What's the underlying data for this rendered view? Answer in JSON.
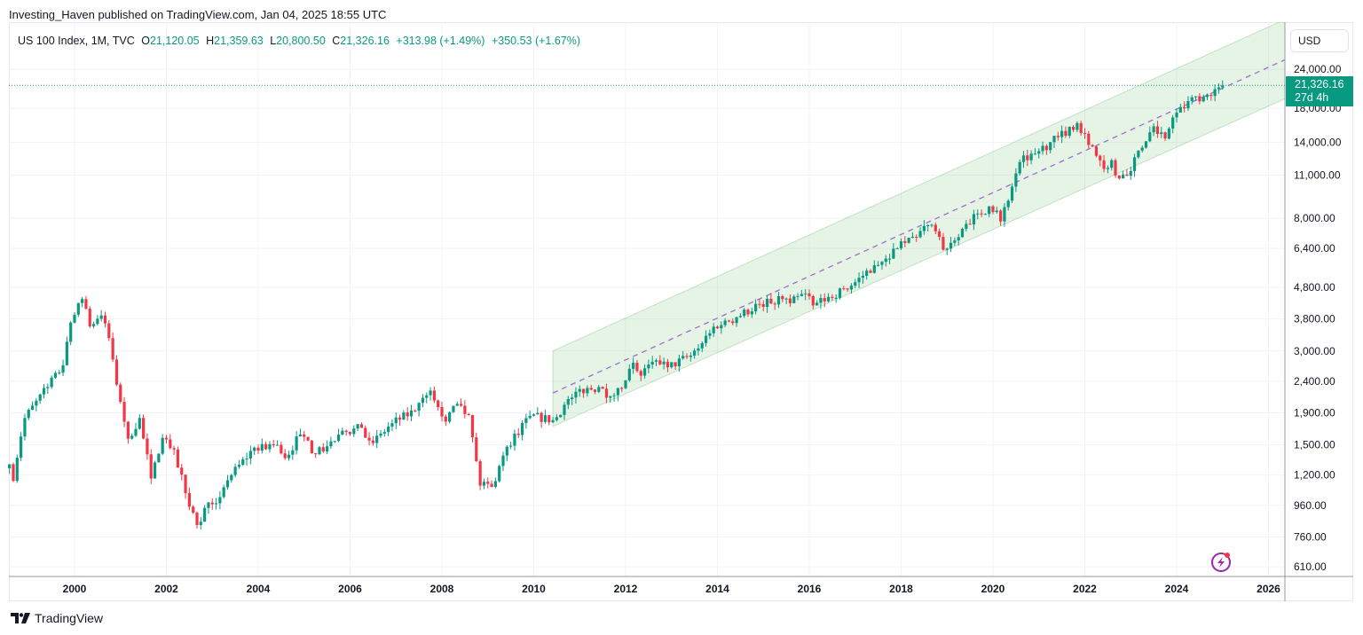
{
  "published": "Investing_Haven published on TradingView.com, Jan 04, 2025 18:55 UTC",
  "legend": {
    "symbol": "US 100 Index, 1M, TVC",
    "open_label": "O",
    "open": "21,120.05",
    "high_label": "H",
    "high": "21,359.63",
    "low_label": "L",
    "low": "20,800.50",
    "close_label": "C",
    "close": "21,326.16",
    "change": "+313.98 (+1.49%)",
    "change2": "+350.53 (+1.67%)"
  },
  "currency": "USD",
  "last_price": {
    "value": "21,326.16",
    "countdown": "27d 4h"
  },
  "footer": {
    "brand": "TradingView"
  },
  "icons": {
    "logo": "tradingview-logo-icon",
    "flash": "lightning-icon"
  },
  "colors": {
    "up": "#089981",
    "down": "#f23645",
    "channel": "#c8e6c9",
    "midline": "#9c6ccf",
    "last_price": "#089981"
  },
  "chart_data": {
    "type": "candlestick",
    "title": "",
    "scale": "log",
    "grid": true,
    "y_ticks": [
      "24,000.00",
      "18,000.00",
      "14,000.00",
      "11,000.00",
      "8,000.00",
      "6,400.00",
      "4,800.00",
      "3,800.00",
      "3,000.00",
      "2,400.00",
      "1,900.00",
      "1,500.00",
      "1,200.00",
      "960.00",
      "760.00",
      "610.00"
    ],
    "y_tick_values": [
      24000,
      18000,
      14000,
      11000,
      8000,
      6400,
      4800,
      3800,
      3000,
      2400,
      1900,
      1500,
      1200,
      960,
      760,
      610
    ],
    "x_ticks": [
      "2000",
      "2002",
      "2004",
      "2006",
      "2008",
      "2010",
      "2012",
      "2014",
      "2016",
      "2018",
      "2020",
      "2022",
      "2024",
      "2026"
    ],
    "x_tick_values": [
      2000,
      2002,
      2004,
      2006,
      2008,
      2010,
      2012,
      2014,
      2016,
      2018,
      2020,
      2022,
      2024,
      2026
    ],
    "xlim": [
      1998.57,
      2026.4
    ],
    "ylim": [
      570,
      31000
    ],
    "monthly_close_anchors": [
      [
        "1998-08",
        1300
      ],
      [
        "1998-09",
        1150
      ],
      [
        "1998-12",
        1830
      ],
      [
        "1999-06",
        2300
      ],
      [
        "1999-10",
        2700
      ],
      [
        "1999-12",
        3700
      ],
      [
        "2000-03",
        4400
      ],
      [
        "2000-05",
        3600
      ],
      [
        "2000-08",
        3900
      ],
      [
        "2000-10",
        3300
      ],
      [
        "2000-12",
        2340
      ],
      [
        "2001-03",
        1570
      ],
      [
        "2001-06",
        1830
      ],
      [
        "2001-09",
        1170
      ],
      [
        "2001-12",
        1580
      ],
      [
        "2002-03",
        1450
      ],
      [
        "2002-06",
        1050
      ],
      [
        "2002-09",
        830
      ],
      [
        "2002-12",
        980
      ],
      [
        "2003-03",
        1020
      ],
      [
        "2003-06",
        1200
      ],
      [
        "2003-12",
        1470
      ],
      [
        "2004-06",
        1500
      ],
      [
        "2004-08",
        1360
      ],
      [
        "2004-12",
        1620
      ],
      [
        "2005-04",
        1400
      ],
      [
        "2005-12",
        1650
      ],
      [
        "2006-04",
        1700
      ],
      [
        "2006-07",
        1520
      ],
      [
        "2006-12",
        1760
      ],
      [
        "2007-06",
        1930
      ],
      [
        "2007-10",
        2240
      ],
      [
        "2008-02",
        1780
      ],
      [
        "2008-05",
        2030
      ],
      [
        "2008-08",
        1870
      ],
      [
        "2008-11",
        1110
      ],
      [
        "2009-02",
        1100
      ],
      [
        "2009-06",
        1480
      ],
      [
        "2009-12",
        1860
      ],
      [
        "2010-06",
        1800
      ],
      [
        "2010-12",
        2220
      ],
      [
        "2011-06",
        2300
      ],
      [
        "2011-09",
        2150
      ],
      [
        "2011-12",
        2280
      ],
      [
        "2012-03",
        2750
      ],
      [
        "2012-05",
        2500
      ],
      [
        "2012-09",
        2800
      ],
      [
        "2012-12",
        2660
      ],
      [
        "2013-06",
        2900
      ],
      [
        "2013-12",
        3590
      ],
      [
        "2014-06",
        3850
      ],
      [
        "2014-12",
        4240
      ],
      [
        "2015-06",
        4400
      ],
      [
        "2015-08",
        4270
      ],
      [
        "2015-12",
        4590
      ],
      [
        "2016-02",
        4200
      ],
      [
        "2016-12",
        4860
      ],
      [
        "2017-06",
        5650
      ],
      [
        "2017-12",
        6400
      ],
      [
        "2018-09",
        7620
      ],
      [
        "2018-12",
        6330
      ],
      [
        "2019-06",
        7670
      ],
      [
        "2019-12",
        8730
      ],
      [
        "2020-02",
        8460
      ],
      [
        "2020-03",
        7810
      ],
      [
        "2020-08",
        12110
      ],
      [
        "2020-12",
        12880
      ],
      [
        "2021-06",
        14550
      ],
      [
        "2021-11",
        16140
      ],
      [
        "2022-01",
        14930
      ],
      [
        "2022-06",
        11500
      ],
      [
        "2022-08",
        12270
      ],
      [
        "2022-09",
        10970
      ],
      [
        "2022-12",
        10940
      ],
      [
        "2023-03",
        13180
      ],
      [
        "2023-07",
        15760
      ],
      [
        "2023-10",
        14400
      ],
      [
        "2023-12",
        16830
      ],
      [
        "2024-06",
        19680
      ],
      [
        "2024-08",
        19575
      ],
      [
        "2024-12",
        21010
      ],
      [
        "2025-01",
        21326.16
      ]
    ],
    "channel": {
      "start": "2010-06",
      "end": "2026-06",
      "mid_start": 2200,
      "upper_start": 3000,
      "lower_start": 1720,
      "mid_end": 26000,
      "upper_end": 35000,
      "lower_end": 19500
    }
  }
}
